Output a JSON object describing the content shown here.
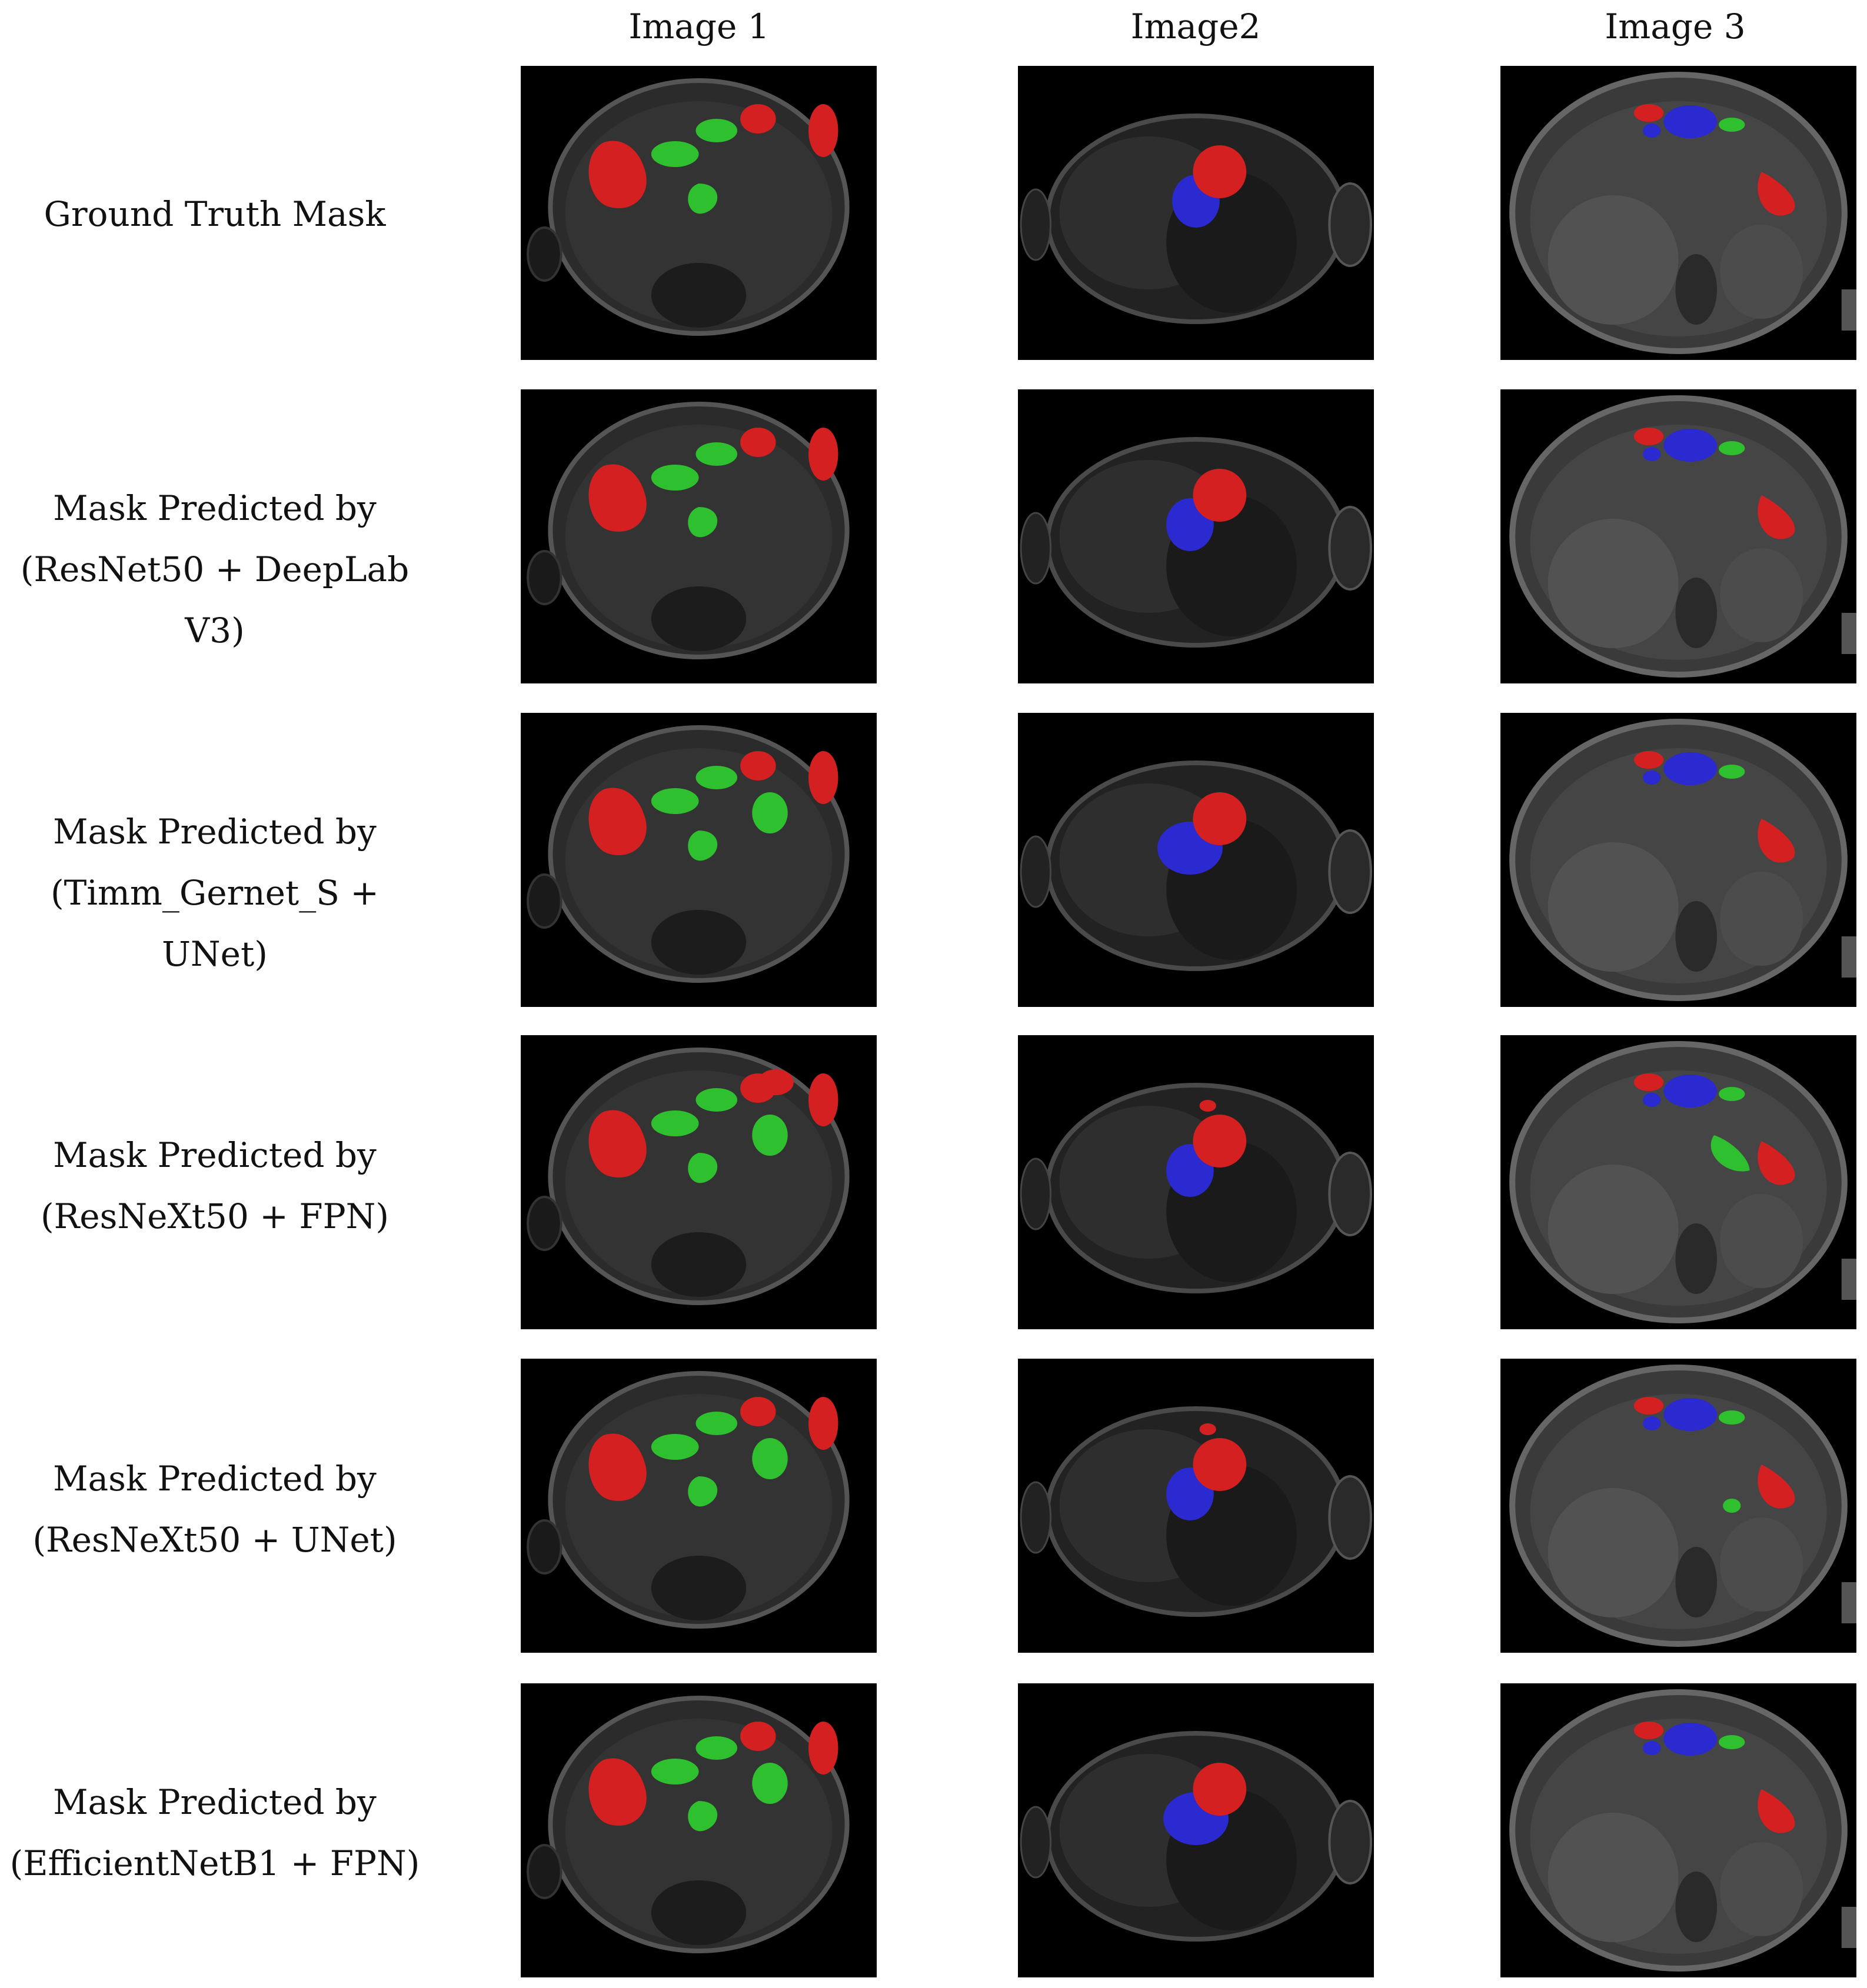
{
  "columns": [
    "Image 1",
    "Image2",
    "Image 3"
  ],
  "rows": [
    {
      "label_line1": "Ground Truth Mask",
      "label_line2": ""
    },
    {
      "label_line1": "Mask Predicted by",
      "label_line2": "(ResNet50 + DeepLab V3)"
    },
    {
      "label_line1": "Mask Predicted by",
      "label_line2": "(Timm_Gernet_S + UNet)"
    },
    {
      "label_line1": "Mask Predicted by",
      "label_line2": "(ResNeXt50 + FPN)"
    },
    {
      "label_line1": "Mask Predicted by",
      "label_line2": "(ResNeXt50 + UNet)"
    },
    {
      "label_line1": "Mask Predicted by",
      "label_line2": "(EfficientNetB1 + FPN)"
    }
  ],
  "colors": {
    "red": "#d42020",
    "green": "#2fc02f",
    "blue": "#2a2ad0",
    "tissue": "#3a3a3a",
    "background": "#000000"
  }
}
